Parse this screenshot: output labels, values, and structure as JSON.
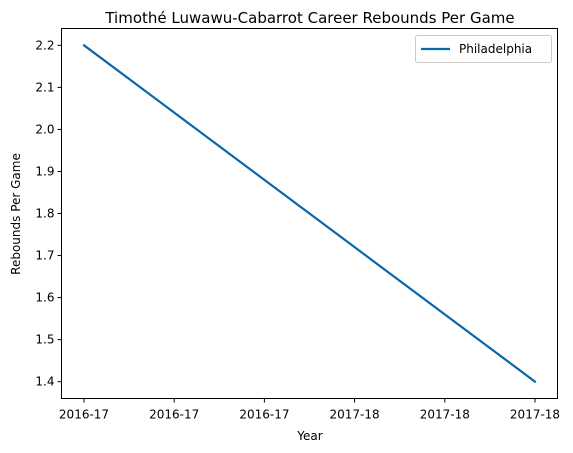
{
  "chart_data": {
    "type": "line",
    "title": "Timothé Luwawu-Cabarrot Career Rebounds Per Game",
    "xlabel": "Year",
    "ylabel": "Rebounds Per Game",
    "x_tick_labels": [
      "2016-17",
      "2016-17",
      "2016-17",
      "2017-18",
      "2017-18",
      "2017-18"
    ],
    "x": [
      "2016-17",
      "2017-18"
    ],
    "series": [
      {
        "name": "Philadelphia",
        "values": [
          2.2,
          1.4
        ],
        "color": "#0868ac"
      }
    ],
    "yticks": [
      1.4,
      1.5,
      1.6,
      1.7,
      1.8,
      1.9,
      2.0,
      2.1,
      2.2
    ],
    "ylim": [
      1.36,
      2.24
    ],
    "grid": false,
    "legend": "upper-right"
  }
}
